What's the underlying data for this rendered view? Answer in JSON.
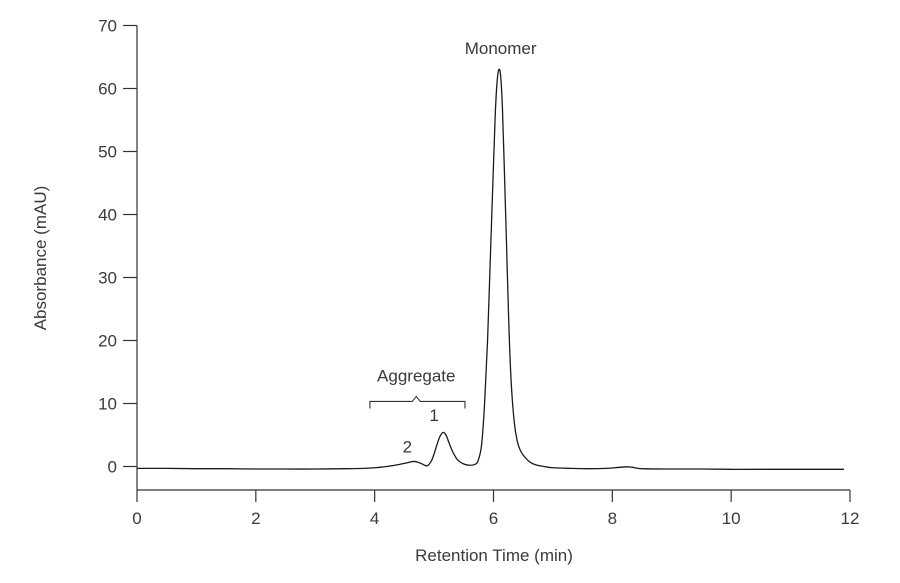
{
  "chart_data": {
    "type": "line",
    "title": "",
    "xlabel": "Retention Time (min)",
    "ylabel": "Absorbance (mAU)",
    "xlim": [
      0,
      12
    ],
    "ylim": [
      -4,
      70
    ],
    "x_ticks": [
      0,
      2,
      4,
      6,
      8,
      10,
      12
    ],
    "x_tick_labels": [
      "0",
      "2",
      "4",
      "6",
      "8",
      "10",
      "12"
    ],
    "y_ticks": [
      0,
      10,
      20,
      30,
      40,
      50,
      60,
      70
    ],
    "y_tick_labels": [
      "0",
      "10",
      "20",
      "30",
      "40",
      "50",
      "60",
      "70"
    ],
    "grid": false,
    "legend": "none",
    "line_color": "#1a1a1a",
    "series": [
      {
        "x": [
          0,
          0.5,
          1,
          1.5,
          2,
          2.5,
          3,
          3.5,
          3.8,
          4.0,
          4.2,
          4.4,
          4.55,
          4.65,
          4.72,
          4.8,
          4.88,
          4.95,
          5.0,
          5.05,
          5.1,
          5.15,
          5.2,
          5.25,
          5.3,
          5.35,
          5.4,
          5.5,
          5.6,
          5.7,
          5.75,
          5.8,
          5.85,
          5.9,
          5.95,
          6.0,
          6.03,
          6.06,
          6.09,
          6.12,
          6.15,
          6.18,
          6.22,
          6.26,
          6.3,
          6.35,
          6.4,
          6.45,
          6.5,
          6.6,
          6.7,
          6.85,
          7.0,
          7.3,
          7.6,
          7.9,
          8.1,
          8.25,
          8.35,
          8.5,
          9.0,
          9.5,
          10.0,
          10.5,
          11.0,
          11.5,
          11.9
        ],
        "y": [
          -0.3,
          -0.3,
          -0.35,
          -0.35,
          -0.4,
          -0.4,
          -0.4,
          -0.35,
          -0.3,
          -0.2,
          0.0,
          0.3,
          0.6,
          0.8,
          0.7,
          0.4,
          0.1,
          0.8,
          2.0,
          3.5,
          4.8,
          5.4,
          5.0,
          3.8,
          2.6,
          1.7,
          1.0,
          0.4,
          0.2,
          0.4,
          1.2,
          3.5,
          10.0,
          20.0,
          34.0,
          48.0,
          56.0,
          61.0,
          63.0,
          62.0,
          57.0,
          48.0,
          35.0,
          22.0,
          13.0,
          7.0,
          4.0,
          2.6,
          1.8,
          0.8,
          0.3,
          0.0,
          -0.2,
          -0.3,
          -0.35,
          -0.3,
          -0.15,
          -0.05,
          -0.15,
          -0.35,
          -0.4,
          -0.4,
          -0.45,
          -0.45,
          -0.45,
          -0.45,
          -0.45
        ]
      }
    ],
    "annotations": [
      {
        "text": "Monomer",
        "x": 6.12,
        "y": 65.5
      },
      {
        "text": "1",
        "x": 5.0,
        "y": 7.2
      },
      {
        "text": "2",
        "x": 4.55,
        "y": 2.2
      },
      {
        "text": "Aggregate",
        "x": 4.7,
        "y": 13.5,
        "bracket_from": 3.92,
        "bracket_to": 5.52
      }
    ]
  }
}
